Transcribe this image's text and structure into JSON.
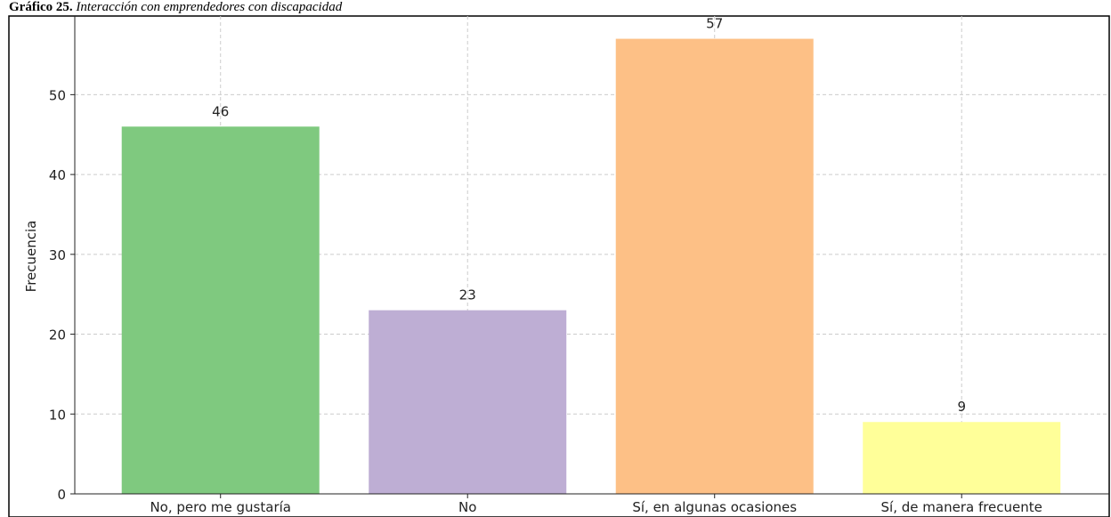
{
  "caption_label": "Gráfico 25.",
  "caption_text": "Interacción con emprendedores con discapacidad",
  "chart_data": {
    "type": "bar",
    "categories": [
      "No, pero me gustaría",
      "No",
      "Sí, en algunas ocasiones",
      "Sí, de manera frecuente"
    ],
    "values": [
      46,
      23,
      57,
      9
    ],
    "colors": [
      "#7fc97f",
      "#beaed4",
      "#fdc086",
      "#ffff99"
    ],
    "ylabel": "Frecuencia",
    "ylim": [
      0,
      59.85
    ],
    "yticks": [
      0,
      10,
      20,
      30,
      40,
      50
    ],
    "grid": true
  }
}
